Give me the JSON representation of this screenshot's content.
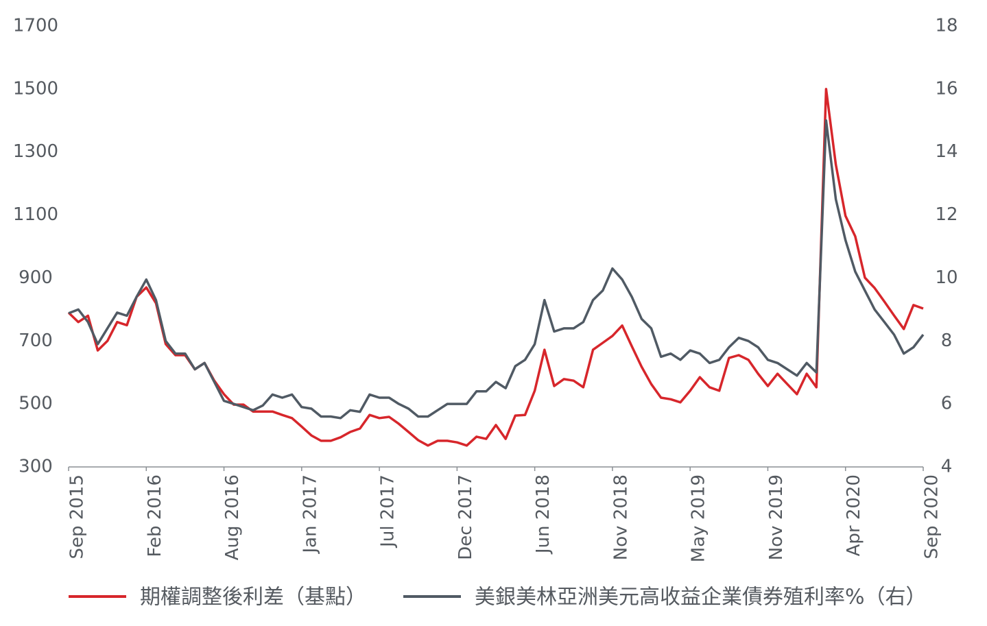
{
  "chart_data": {
    "type": "line",
    "categories": [
      "Sep 2015",
      null,
      null,
      null,
      null,
      null,
      null,
      null,
      "Feb 2016",
      null,
      null,
      null,
      null,
      null,
      null,
      null,
      "Aug 2016",
      null,
      null,
      null,
      null,
      null,
      null,
      null,
      "Jan 2017",
      null,
      null,
      null,
      null,
      null,
      null,
      null,
      "Jul 2017",
      null,
      null,
      null,
      null,
      null,
      null,
      null,
      "Dec 2017",
      null,
      null,
      null,
      null,
      null,
      null,
      null,
      "Jun 2018",
      null,
      null,
      null,
      null,
      null,
      null,
      null,
      "Nov 2018",
      null,
      null,
      null,
      null,
      null,
      null,
      null,
      "May 2019",
      null,
      null,
      null,
      null,
      null,
      null,
      null,
      "Nov 2019",
      null,
      null,
      null,
      null,
      null,
      null,
      null,
      "Apr 2020",
      null,
      null,
      null,
      null,
      null,
      null,
      null,
      "Sep 2020"
    ],
    "series": [
      {
        "name": "期權調整後利差（基點）",
        "color": "#d7262b",
        "values": [
          790,
          760,
          780,
          670,
          700,
          760,
          750,
          840,
          870,
          820,
          690,
          655,
          655,
          610,
          630,
          574,
          531,
          498,
          498,
          476,
          476,
          476,
          465,
          455,
          428,
          400,
          383,
          383,
          394,
          411,
          422,
          465,
          455,
          459,
          437,
          411,
          385,
          368,
          383,
          383,
          378,
          368,
          396,
          389,
          433,
          389,
          463,
          465,
          542,
          672,
          557,
          579,
          574,
          553,
          672,
          694,
          716,
          749,
          683,
          618,
          563,
          520,
          515,
          505,
          542,
          585,
          553,
          542,
          646,
          655,
          640,
          596,
          557,
          596,
          563,
          531,
          596,
          553,
          1500,
          1260,
          1097,
          1032,
          901,
          868,
          825,
          781,
          738,
          814,
          803
        ]
      },
      {
        "name": "美銀美林亞洲美元高收益企業債券殖利率%（右）",
        "color": "#505a64",
        "axis": "y2",
        "values": [
          8.88,
          9.0,
          8.6,
          7.9,
          8.4,
          8.9,
          8.8,
          9.4,
          9.95,
          9.3,
          8.0,
          7.6,
          7.6,
          7.1,
          7.3,
          6.7,
          6.1,
          6.0,
          5.9,
          5.8,
          5.95,
          6.3,
          6.2,
          6.3,
          5.9,
          5.85,
          5.6,
          5.6,
          5.55,
          5.8,
          5.75,
          6.3,
          6.2,
          6.2,
          6.0,
          5.85,
          5.6,
          5.6,
          5.8,
          6.0,
          6.0,
          6.0,
          6.4,
          6.4,
          6.7,
          6.5,
          7.2,
          7.4,
          7.9,
          9.3,
          8.3,
          8.4,
          8.4,
          8.6,
          9.3,
          9.6,
          10.3,
          9.95,
          9.4,
          8.7,
          8.4,
          7.5,
          7.6,
          7.4,
          7.7,
          7.6,
          7.3,
          7.4,
          7.8,
          8.1,
          8.0,
          7.8,
          7.4,
          7.3,
          7.1,
          6.9,
          7.3,
          7.0,
          15.0,
          12.5,
          11.2,
          10.2,
          9.6,
          9.0,
          8.6,
          8.2,
          7.6,
          7.8,
          8.2
        ]
      }
    ],
    "ylim": [
      300,
      1700
    ],
    "yticks": [
      300,
      500,
      700,
      900,
      1100,
      1300,
      1500,
      1700
    ],
    "y2lim": [
      4,
      18
    ],
    "y2ticks": [
      4,
      6,
      8,
      10,
      12,
      14,
      16,
      18
    ],
    "grid": false,
    "legend": "bottom"
  }
}
